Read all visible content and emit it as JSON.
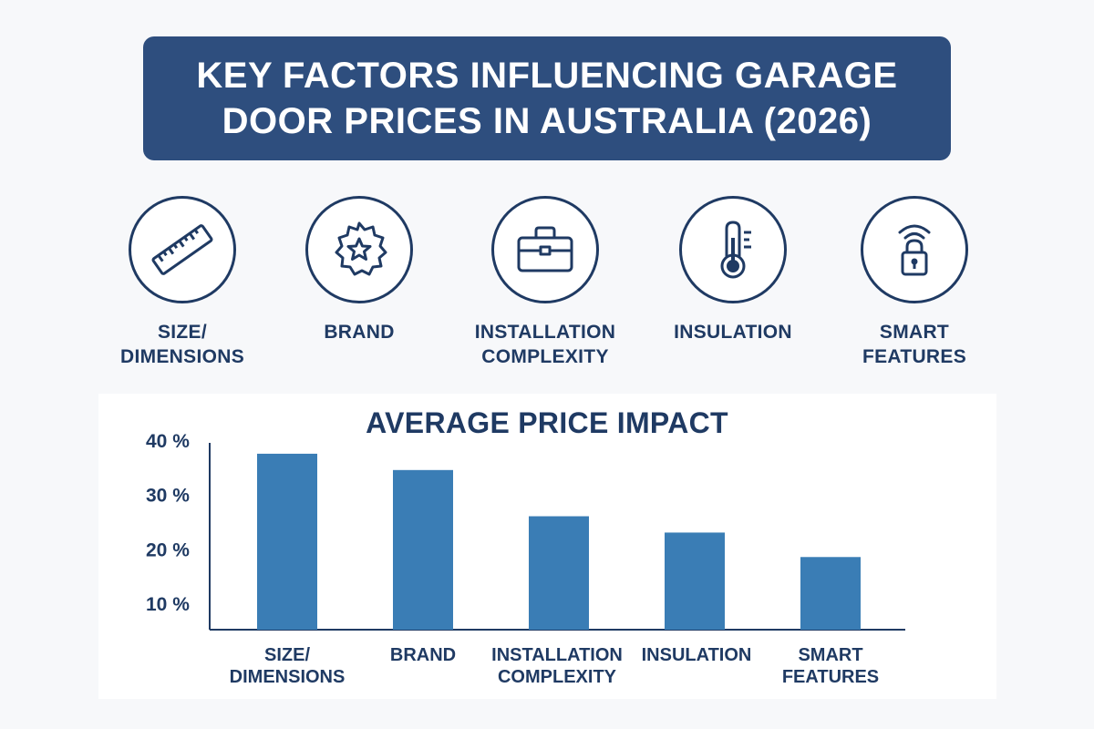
{
  "title": {
    "line1": "KEY FACTORS INFLUENCING GARAGE",
    "line2": "DOOR PRICES IN AUSTRALIA (2026)"
  },
  "factors": [
    {
      "icon": "ruler-icon",
      "label_lines": [
        "SIZE/",
        "DIMENSIONS"
      ]
    },
    {
      "icon": "star-badge-icon",
      "label_lines": [
        "BRAND"
      ]
    },
    {
      "icon": "toolbox-icon",
      "label_lines": [
        "INSTALLATION",
        "COMPLEXITY"
      ]
    },
    {
      "icon": "thermometer-icon",
      "label_lines": [
        "INSULATION"
      ]
    },
    {
      "icon": "smart-lock-icon",
      "label_lines": [
        "SMART",
        "FEATURES"
      ]
    }
  ],
  "colors": {
    "banner": "#2e4e7e",
    "text": "#1f3a63",
    "bar": "#3a7db5"
  },
  "chart_data": {
    "type": "bar",
    "title": "AVERAGE PRICE IMPACT",
    "categories": [
      [
        "SIZE/",
        "DIMENSIONS"
      ],
      [
        "BRAND"
      ],
      [
        "INSTALLATION",
        "COMPLEXITY"
      ],
      [
        "INSULATION"
      ],
      [
        "SMART",
        "FEATURES"
      ]
    ],
    "values": [
      37.5,
      34.5,
      26,
      23,
      18.5
    ],
    "yticks": [
      10,
      20,
      30,
      40
    ],
    "ytick_labels": [
      "10 %",
      "20 %",
      "30 %",
      "40 %"
    ],
    "ylim": [
      5,
      40
    ],
    "grid": false
  }
}
